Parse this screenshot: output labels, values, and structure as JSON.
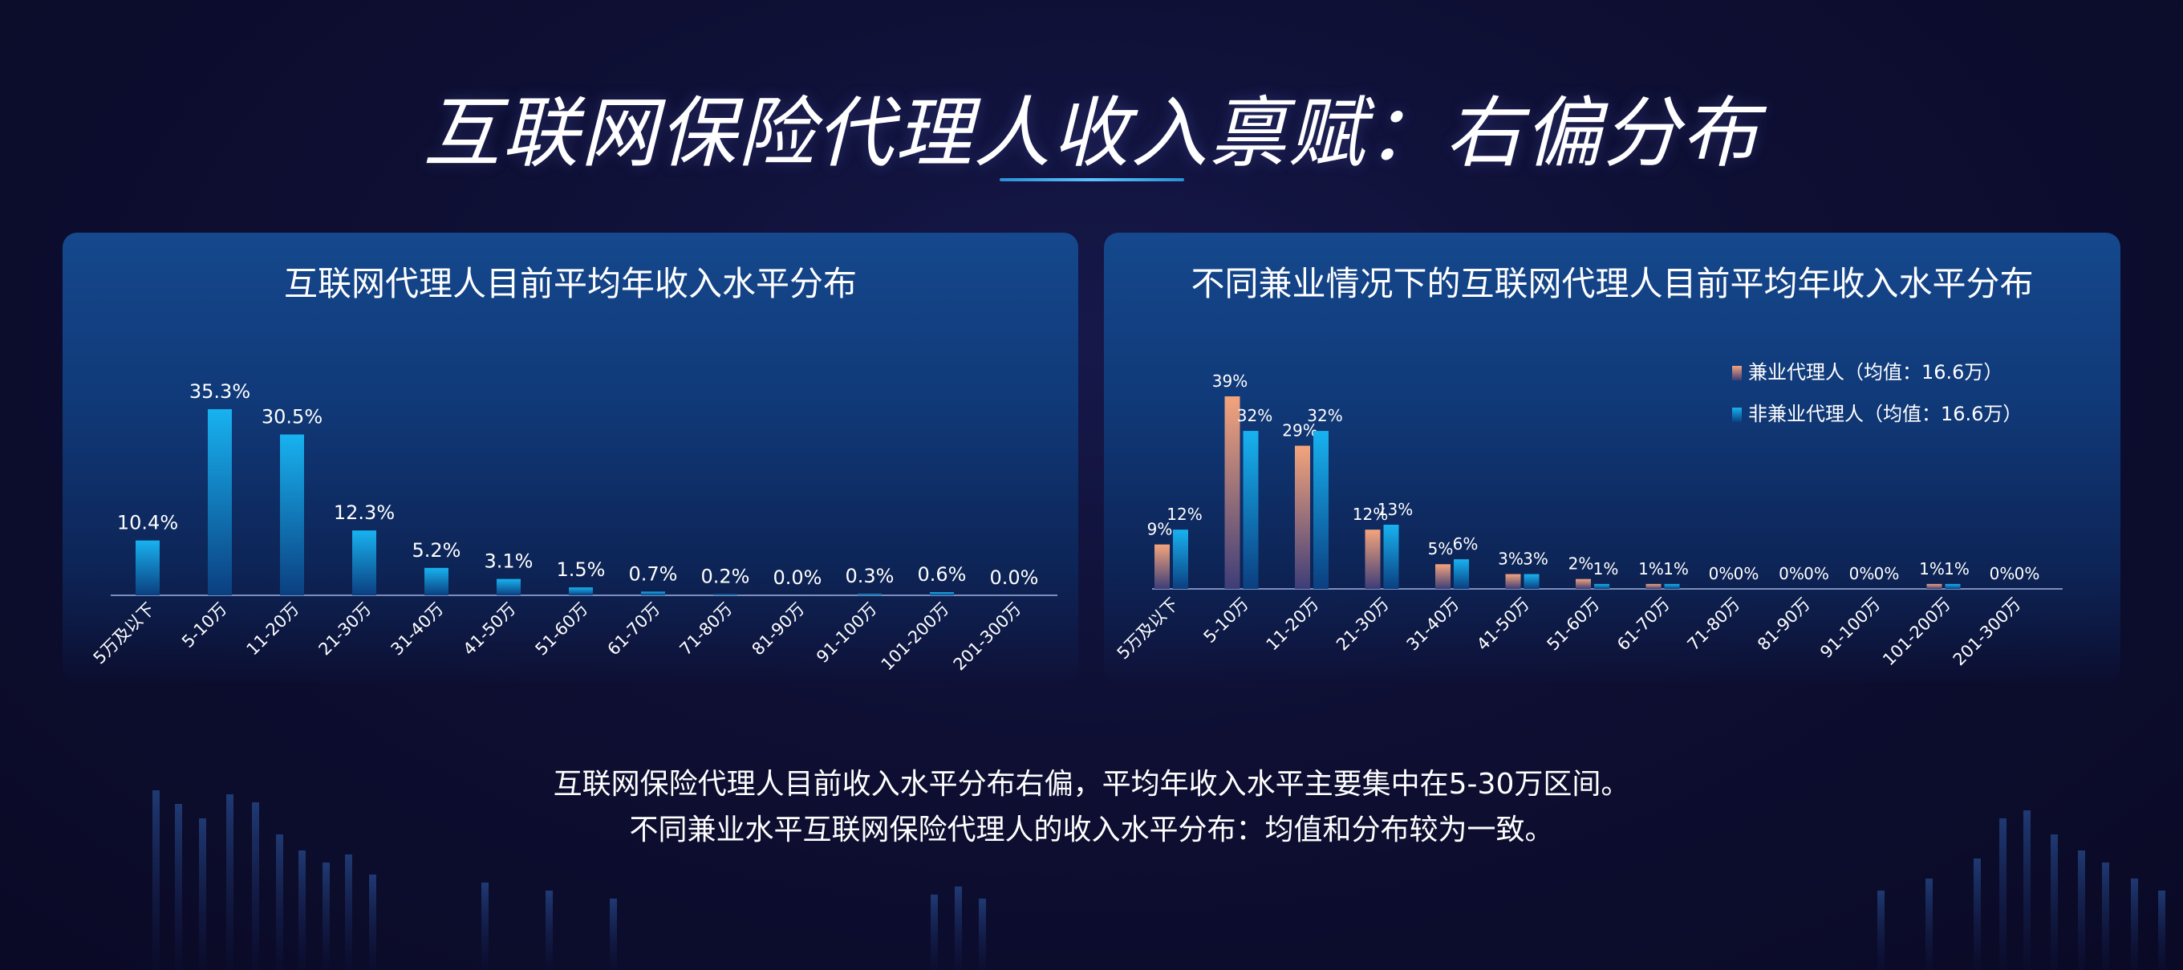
{
  "page_title": "互联网保险代理人收入禀赋：右偏分布",
  "summary_lines": [
    "互联网保险代理人目前收入水平分布右偏，平均年收入水平主要集中在5-30万区间。",
    "不同兼业水平互联网保险代理人的收入水平分布：均值和分布较为一致。"
  ],
  "colors": {
    "bar_blue_top": "#18b2f0",
    "bar_blue_bottom": "#0b3f80",
    "bar_orange_top": "#f4a47c",
    "bar_orange_bottom": "#3d3d78",
    "axis": "#7a8fbf"
  },
  "chart_data": [
    {
      "type": "bar",
      "title": "互联网代理人目前平均年收入水平分布",
      "categories": [
        "5万及以下",
        "5-10万",
        "11-20万",
        "21-30万",
        "31-40万",
        "41-50万",
        "51-60万",
        "61-70万",
        "71-80万",
        "81-90万",
        "91-100万",
        "101-200万",
        "201-300万"
      ],
      "values": [
        10.4,
        35.3,
        30.5,
        12.3,
        5.2,
        3.1,
        1.5,
        0.7,
        0.2,
        0.0,
        0.3,
        0.6,
        0.0
      ],
      "data_labels": [
        "10.4%",
        "35.3%",
        "30.5%",
        "12.3%",
        "5.2%",
        "3.1%",
        "1.5%",
        "0.7%",
        "0.2%",
        "0.0%",
        "0.3%",
        "0.6%",
        "0.0%"
      ],
      "ylim": [
        0,
        40
      ],
      "grid": false,
      "legend": "none"
    },
    {
      "type": "bar",
      "title": "不同兼业情况下的互联网代理人目前平均年收入水平分布",
      "categories": [
        "5万及以下",
        "5-10万",
        "11-20万",
        "21-30万",
        "31-40万",
        "41-50万",
        "51-60万",
        "61-70万",
        "71-80万",
        "81-90万",
        "91-100万",
        "101-200万",
        "201-300万"
      ],
      "series": [
        {
          "name": "兼业代理人（均值：16.6万）",
          "values": [
            9,
            39,
            29,
            12,
            5,
            3,
            2,
            1,
            0,
            0,
            0,
            1,
            0
          ],
          "data_labels": [
            "9%",
            "39%",
            "29%",
            "12%",
            "5%",
            "3%",
            "2%",
            "1%",
            "0%",
            "0%",
            "0%",
            "1%",
            "0%"
          ]
        },
        {
          "name": "非兼业代理人（均值：16.6万）",
          "values": [
            12,
            32,
            32,
            13,
            6,
            3,
            1,
            1,
            0,
            0,
            0,
            1,
            0
          ],
          "data_labels": [
            "12%",
            "32%",
            "32%",
            "13%",
            "6%",
            "3%",
            "1%",
            "1%",
            "0%",
            "0%",
            "0%",
            "1%",
            "0%"
          ]
        }
      ],
      "ylim": [
        0,
        40
      ],
      "grid": false,
      "legend": "top-right"
    }
  ]
}
